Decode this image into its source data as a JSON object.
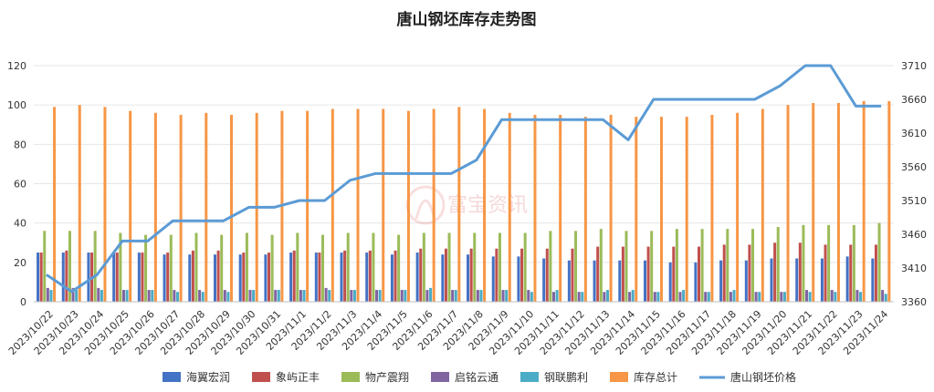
{
  "chart_data": {
    "type": "bar",
    "title": "唐山钢坯库存走势图",
    "watermark": "富宝资讯",
    "categories": [
      "2023/10/22",
      "2023/10/23",
      "2023/10/24",
      "2023/10/25",
      "2023/10/26",
      "2023/10/27",
      "2023/10/28",
      "2023/10/29",
      "2023/10/30",
      "2023/10/31",
      "2023/11/1",
      "2023/11/2",
      "2023/11/3",
      "2023/11/4",
      "2023/11/5",
      "2023/11/6",
      "2023/11/7",
      "2023/11/8",
      "2023/11/9",
      "2023/11/10",
      "2023/11/11",
      "2023/11/12",
      "2023/11/13",
      "2023/11/14",
      "2023/11/15",
      "2023/11/16",
      "2023/11/17",
      "2023/11/18",
      "2023/11/19",
      "2023/11/20",
      "2023/11/21",
      "2023/11/22",
      "2023/11/23",
      "2023/11/24"
    ],
    "ylim": [
      0,
      120
    ],
    "yticks": [
      0,
      20,
      40,
      60,
      80,
      100,
      120
    ],
    "y2lim": [
      3360,
      3710
    ],
    "y2ticks": [
      3360,
      3410,
      3460,
      3510,
      3560,
      3610,
      3660,
      3710
    ],
    "grid": true,
    "legend_position": "bottom",
    "series": [
      {
        "name": "海翼宏润",
        "color": "#4472c4",
        "type": "bar",
        "values": [
          25,
          25,
          25,
          25,
          25,
          24,
          24,
          24,
          24,
          24,
          25,
          25,
          25,
          25,
          24,
          25,
          24,
          24,
          23,
          23,
          22,
          21,
          21,
          21,
          21,
          20,
          20,
          21,
          21,
          22,
          22,
          22,
          23,
          22
        ]
      },
      {
        "name": "象屿正丰",
        "color": "#c0504d",
        "type": "bar",
        "values": [
          25,
          26,
          25,
          25,
          25,
          25,
          26,
          26,
          25,
          25,
          26,
          25,
          26,
          26,
          26,
          27,
          27,
          27,
          27,
          27,
          27,
          27,
          28,
          28,
          28,
          28,
          28,
          29,
          29,
          30,
          30,
          29,
          29,
          29
        ]
      },
      {
        "name": "物产震翔",
        "color": "#9bbb59",
        "type": "bar",
        "values": [
          36,
          36,
          36,
          35,
          34,
          34,
          35,
          34,
          35,
          34,
          35,
          34,
          35,
          35,
          34,
          35,
          35,
          35,
          35,
          35,
          36,
          36,
          37,
          36,
          36,
          37,
          37,
          37,
          37,
          38,
          39,
          39,
          39,
          40
        ]
      },
      {
        "name": "启铭云通",
        "color": "#8064a2",
        "type": "bar",
        "values": [
          7,
          7,
          7,
          6,
          6,
          6,
          6,
          6,
          6,
          6,
          6,
          7,
          6,
          6,
          6,
          6,
          6,
          6,
          6,
          6,
          5,
          5,
          5,
          5,
          5,
          5,
          5,
          5,
          5,
          5,
          6,
          6,
          6,
          6
        ]
      },
      {
        "name": "钢联鹏利",
        "color": "#4bacc6",
        "type": "bar",
        "values": [
          6,
          6,
          6,
          6,
          6,
          5,
          5,
          5,
          6,
          6,
          6,
          6,
          6,
          6,
          6,
          7,
          6,
          6,
          6,
          5,
          6,
          5,
          6,
          6,
          5,
          6,
          5,
          6,
          5,
          5,
          5,
          5,
          5,
          4
        ]
      },
      {
        "name": "库存总计",
        "color": "#f79646",
        "type": "bar",
        "values": [
          99,
          100,
          99,
          97,
          96,
          95,
          96,
          95,
          96,
          97,
          97,
          98,
          98,
          98,
          97,
          98,
          99,
          98,
          96,
          95,
          95,
          94,
          95,
          94,
          94,
          94,
          95,
          96,
          98,
          100,
          101,
          101,
          102,
          102
        ]
      },
      {
        "name": "唐山钢坯价格",
        "color": "#5b9bd5",
        "type": "line",
        "axis": "right",
        "values": [
          3400,
          3375,
          3400,
          3450,
          3450,
          3480,
          3480,
          3480,
          3500,
          3500,
          3510,
          3510,
          3540,
          3550,
          3550,
          3550,
          3550,
          3570,
          3630,
          3630,
          3630,
          3630,
          3630,
          3600,
          3660,
          3660,
          3660,
          3660,
          3660,
          3680,
          3710,
          3710,
          3650,
          3650
        ]
      }
    ]
  }
}
